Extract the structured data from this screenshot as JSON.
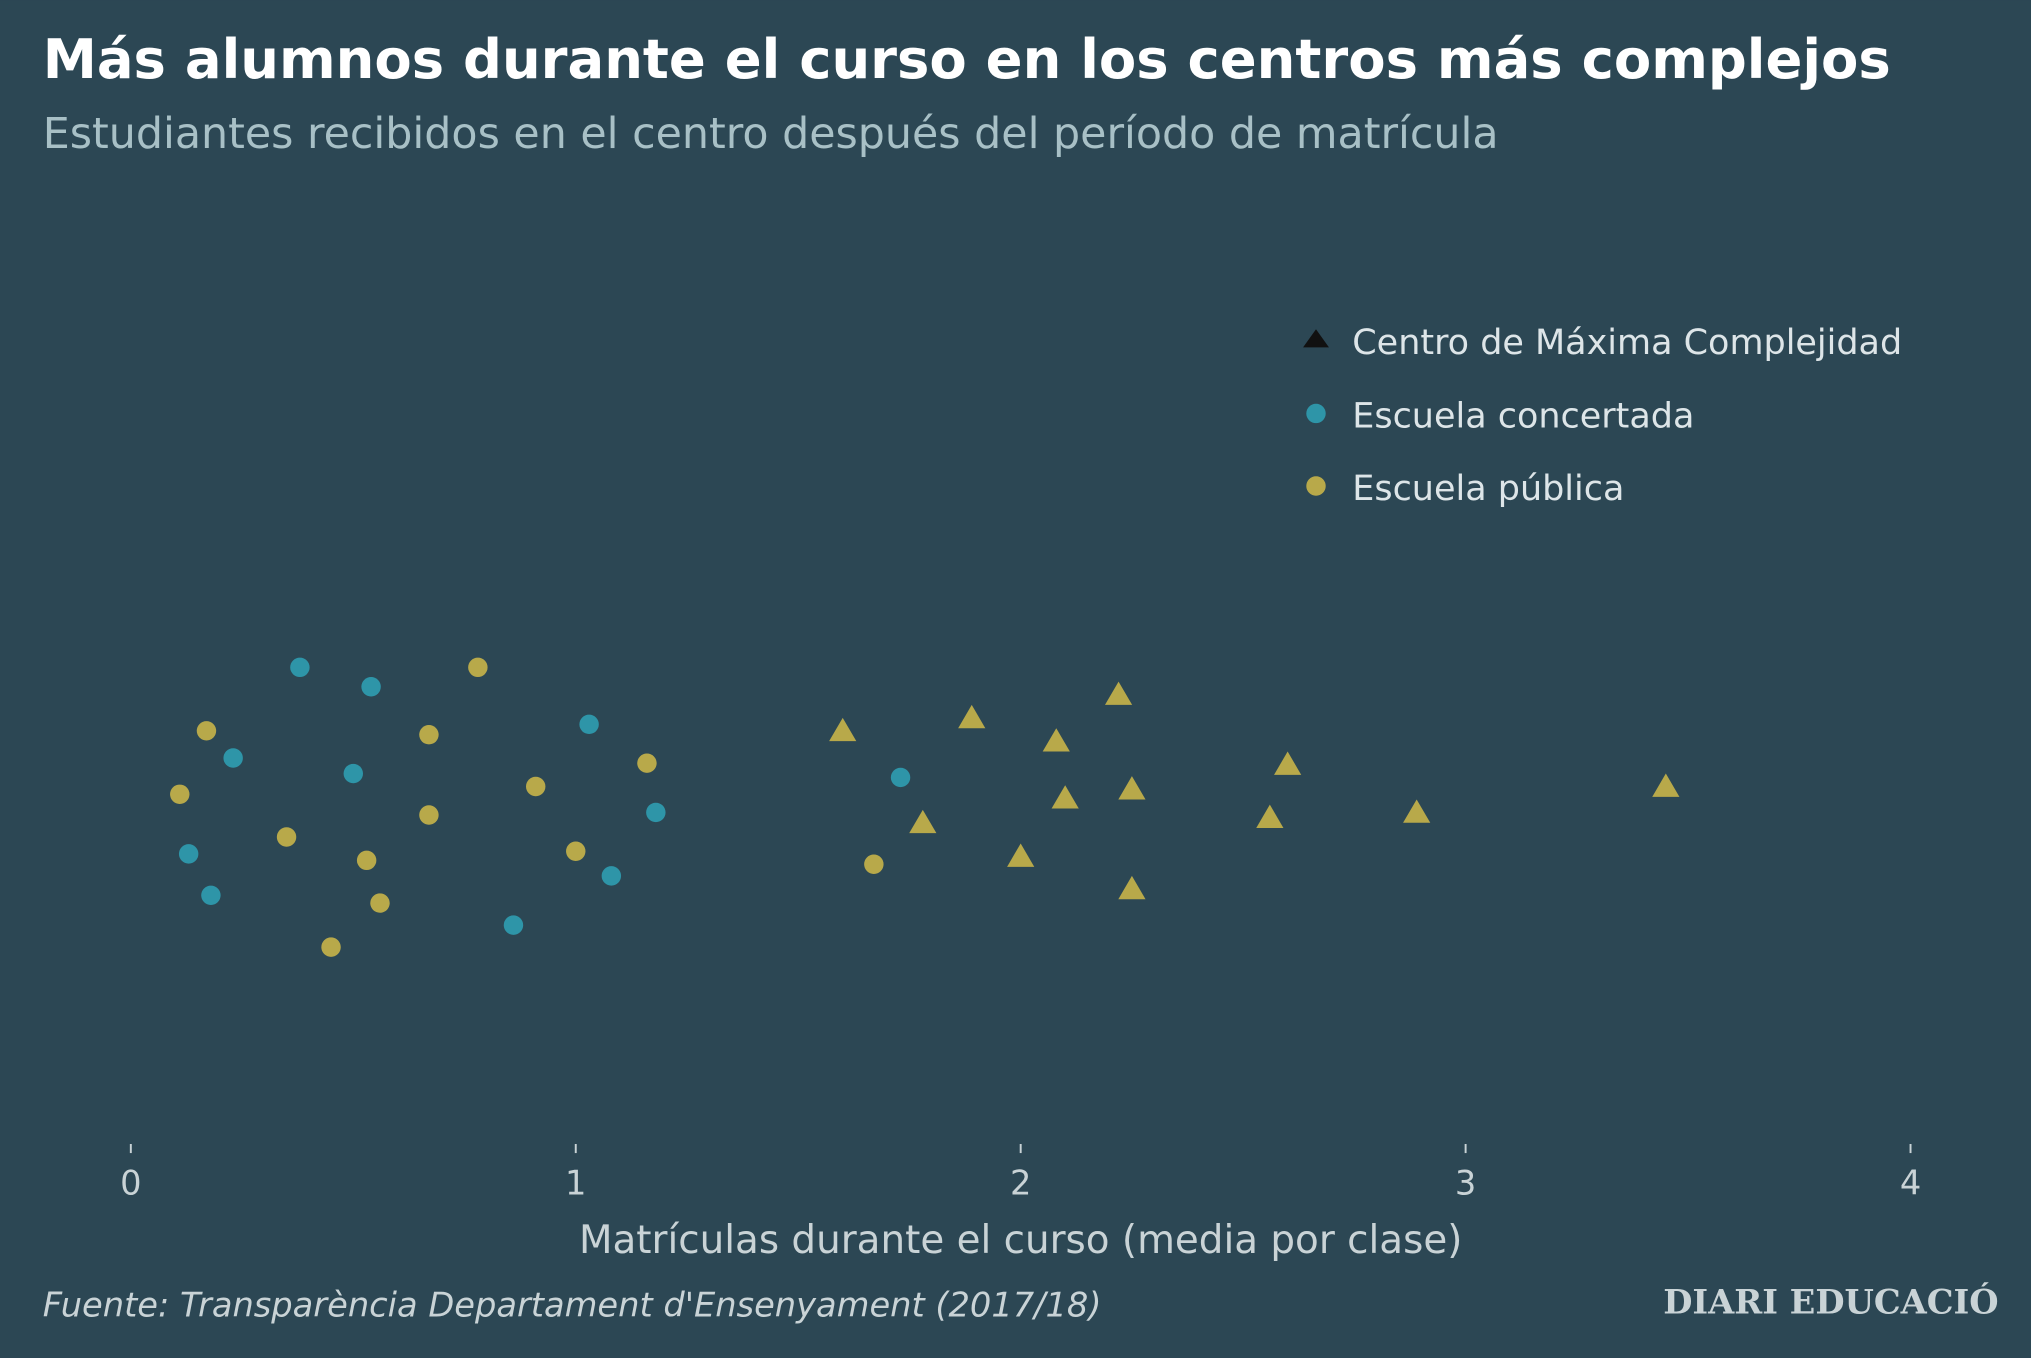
{
  "chart_data": {
    "type": "scatter",
    "title": "Más alumnos durante el curso en los centros más complejos",
    "subtitle": "Estudiantes recibidos en el centro después del período de matrícula",
    "xlabel": "Matrículas durante el curso (media por clase)",
    "ylabel": "",
    "xlim": [
      0,
      4
    ],
    "xticks": [
      "0",
      "1",
      "2",
      "3",
      "4"
    ],
    "grid": false,
    "legend_position": "top-right",
    "source": "Fuente: Transparència Departament d'Ensenyament (2017/18)",
    "logo": "DIARI EDUCACIÓ",
    "series": [
      {
        "name": "Centro de Máxima Complejidad",
        "marker": "triangle",
        "color": "#b8a94a",
        "legend_color": "#111111",
        "x": [
          1.6,
          1.89,
          2.22,
          2.08,
          1.78,
          2.1,
          2.25,
          2.0,
          2.25,
          2.6,
          2.56,
          2.89,
          3.45
        ]
      },
      {
        "name": "Escuela concertada",
        "marker": "circle",
        "color": "#2e95a8",
        "x": [
          0.38,
          0.54,
          0.23,
          0.5,
          0.13,
          0.18,
          1.03,
          1.18,
          1.08,
          0.86,
          1.73
        ]
      },
      {
        "name": "Escuela pública",
        "marker": "circle",
        "color": "#b8a94a",
        "x": [
          0.17,
          0.78,
          0.67,
          0.11,
          0.67,
          0.35,
          0.53,
          0.56,
          0.45,
          0.91,
          1.16,
          1.0,
          1.67
        ]
      }
    ]
  }
}
